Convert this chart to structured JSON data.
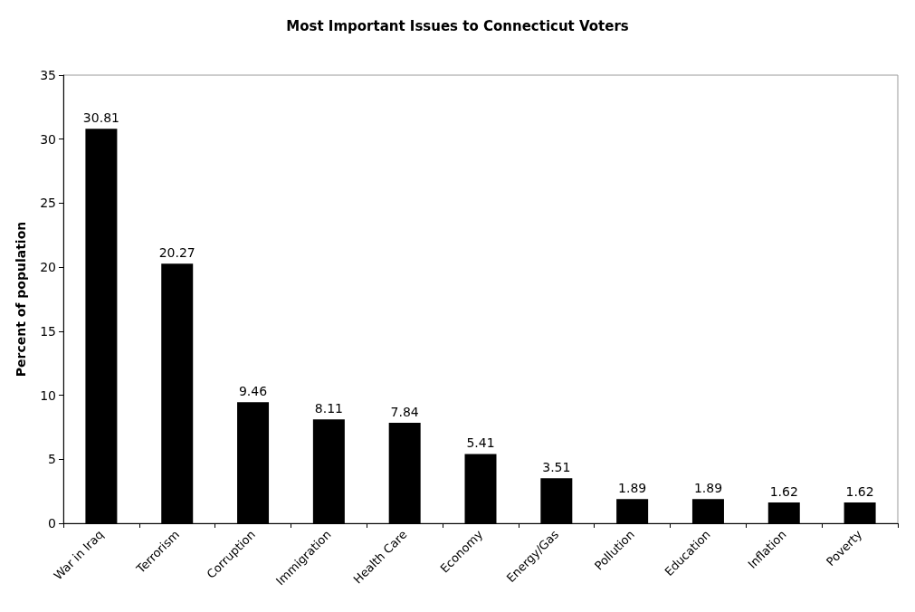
{
  "chart_data": {
    "type": "bar",
    "title": "Most Important Issues to Connecticut Voters",
    "ylabel": "Percent of population",
    "categories": [
      "War in Iraq",
      "Terrorism",
      "Corruption",
      "Immigration",
      "Health Care",
      "Economy",
      "Energy/Gas",
      "Pollution",
      "Education",
      "Inflation",
      "Poverty"
    ],
    "values": [
      30.81,
      20.27,
      9.46,
      8.11,
      7.84,
      5.41,
      3.51,
      1.89,
      1.89,
      1.62,
      1.62
    ],
    "color": "#000000",
    "ylim": [
      0,
      35
    ],
    "yticks": [
      0,
      5,
      10,
      15,
      20,
      25,
      30,
      35
    ],
    "grid": false,
    "data_labels": true
  }
}
